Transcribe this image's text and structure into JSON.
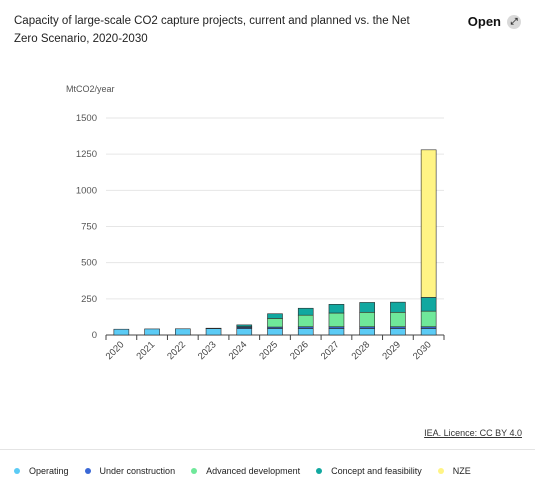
{
  "header": {
    "title": "Capacity of large-scale CO2 capture projects, current and planned vs. the Net Zero Scenario, 2020-2030",
    "open_label": "Open",
    "open_icon": "expand-arrow-icon"
  },
  "footer": {
    "licence": "IEA. Licence: CC BY 4.0"
  },
  "colors": {
    "Operating": "#5bcbf5",
    "Under construction": "#3a68d6",
    "Advanced development": "#6fe89a",
    "Concept and feasibility": "#11a8a0",
    "NZE": "#fff485"
  },
  "chart_data": {
    "type": "bar",
    "stacked": true,
    "ylabel": "MtCO2/year",
    "ylim": [
      0,
      1500
    ],
    "yticks": [
      0,
      250,
      500,
      750,
      1000,
      1250,
      1500
    ],
    "grid": true,
    "legend_position": "bottom",
    "categories": [
      "2020",
      "2021",
      "2022",
      "2023",
      "2024",
      "2025",
      "2026",
      "2027",
      "2028",
      "2029",
      "2030"
    ],
    "series": [
      {
        "name": "Operating",
        "values": [
          40,
          42,
          43,
          45,
          45,
          45,
          45,
          45,
          45,
          45,
          45
        ]
      },
      {
        "name": "Under construction",
        "values": [
          0,
          0,
          0,
          2,
          8,
          10,
          12,
          12,
          12,
          12,
          12
        ]
      },
      {
        "name": "Advanced development",
        "values": [
          0,
          0,
          0,
          0,
          5,
          60,
          80,
          95,
          100,
          100,
          108
        ]
      },
      {
        "name": "Concept and feasibility",
        "values": [
          0,
          0,
          0,
          0,
          12,
          32,
          48,
          60,
          68,
          70,
          95
        ]
      },
      {
        "name": "NZE",
        "values": [
          0,
          0,
          0,
          0,
          0,
          0,
          0,
          0,
          0,
          0,
          1020
        ]
      }
    ]
  }
}
